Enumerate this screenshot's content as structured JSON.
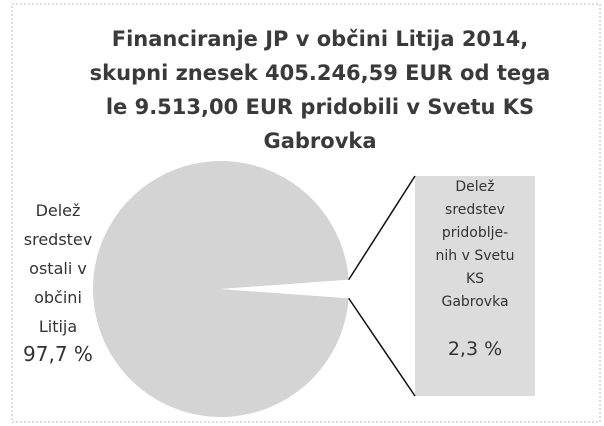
{
  "chart_data": {
    "type": "pie",
    "title": "Financiranje JP v občini Litija 2014,\nskupni znesek 405.246,59 EUR od tega\nle  9.513,00 EUR pridobili  v  Svetu KS\nGabrovka",
    "categories": [
      "Delež\nsredstev\nostali v\nobčini\nLitija",
      "Delež\nsredstev\npridoblje-\nnih  v Svetu\nKS\nGabrovka"
    ],
    "values": [
      97.7,
      2.3
    ],
    "value_labels": [
      "97,7 %",
      "2,3 %"
    ],
    "colors": [
      "#d4d4d4",
      "#dcdcdc"
    ]
  }
}
